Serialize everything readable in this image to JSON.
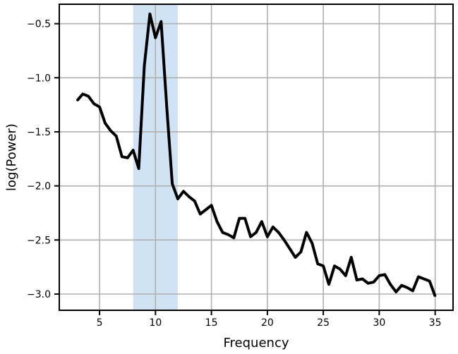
{
  "chart_data": {
    "type": "line",
    "xlabel": "Frequency",
    "ylabel": "log(Power)",
    "xlim": [
      1.4,
      36.6
    ],
    "ylim": [
      -3.15,
      -0.32
    ],
    "xticks": [
      5,
      10,
      15,
      20,
      25,
      30,
      35
    ],
    "yticks": [
      -3.0,
      -2.5,
      -2.0,
      -1.5,
      -1.0,
      -0.5
    ],
    "xtick_labels": [
      "5",
      "10",
      "15",
      "20",
      "25",
      "30",
      "35"
    ],
    "ytick_labels": [
      "−3.0",
      "−2.5",
      "−2.0",
      "−1.5",
      "−1.0",
      "−0.5"
    ],
    "grid": true,
    "highlight_band": {
      "x_start": 8,
      "x_end": 12,
      "color": "#cfe3f5"
    },
    "line_color": "#000000",
    "series": [
      {
        "x": [
          3,
          3.5,
          4,
          4.5,
          5,
          5.5,
          6,
          6.5,
          7,
          7.5,
          8,
          8.5,
          9,
          9.5,
          10,
          10.5,
          11,
          11.5,
          12,
          12.5,
          13,
          13.5,
          14,
          14.5,
          15,
          15.5,
          16,
          16.5,
          17,
          17.5,
          18,
          18.5,
          19,
          19.5,
          20,
          20.5,
          21,
          21.5,
          22,
          22.5,
          23,
          23.5,
          24,
          24.5,
          25,
          25.5,
          26,
          26.5,
          27,
          27.5,
          28,
          28.5,
          29,
          29.5,
          30,
          30.5,
          31,
          31.5,
          32,
          32.5,
          33,
          33.5,
          34,
          34.5,
          35
        ],
        "y": [
          -1.21,
          -1.15,
          -1.17,
          -1.24,
          -1.27,
          -1.42,
          -1.49,
          -1.54,
          -1.73,
          -1.74,
          -1.67,
          -1.84,
          -0.89,
          -0.41,
          -0.63,
          -0.48,
          -1.26,
          -1.98,
          -2.12,
          -2.05,
          -2.1,
          -2.14,
          -2.26,
          -2.22,
          -2.18,
          -2.33,
          -2.43,
          -2.45,
          -2.48,
          -2.3,
          -2.3,
          -2.47,
          -2.43,
          -2.33,
          -2.47,
          -2.38,
          -2.43,
          -2.5,
          -2.58,
          -2.66,
          -2.61,
          -2.43,
          -2.53,
          -2.72,
          -2.74,
          -2.91,
          -2.74,
          -2.77,
          -2.83,
          -2.66,
          -2.87,
          -2.86,
          -2.9,
          -2.89,
          -2.83,
          -2.82,
          -2.91,
          -2.98,
          -2.92,
          -2.94,
          -2.97,
          -2.84,
          -2.86,
          -2.88,
          -3.02
        ]
      }
    ]
  }
}
